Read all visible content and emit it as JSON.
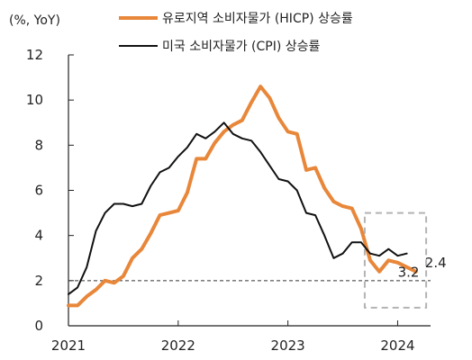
{
  "chart_data": {
    "type": "line",
    "unit_label": "(%, YoY)",
    "ylim": [
      0,
      12
    ],
    "yticks": [
      0,
      2,
      4,
      6,
      8,
      10,
      12
    ],
    "xlim": [
      2021.0,
      2024.3
    ],
    "xticks": [
      "2021",
      "2022",
      "2023",
      "2024"
    ],
    "legend_position": "top",
    "reference_line": {
      "y": 2,
      "style": "dashed"
    },
    "highlight_box": {
      "x_range": [
        2023.7,
        2024.26
      ],
      "y_range": [
        0.8,
        5.0
      ],
      "style": "dashed"
    },
    "series": [
      {
        "name": "유로지역 소비자물가 (HICP) 상승률",
        "color": "#E8873A",
        "x": [
          2021.0,
          2021.083,
          2021.167,
          2021.25,
          2021.333,
          2021.417,
          2021.5,
          2021.583,
          2021.667,
          2021.75,
          2021.833,
          2021.917,
          2022.0,
          2022.083,
          2022.167,
          2022.25,
          2022.333,
          2022.417,
          2022.5,
          2022.583,
          2022.667,
          2022.75,
          2022.833,
          2022.917,
          2023.0,
          2023.083,
          2023.167,
          2023.25,
          2023.333,
          2023.417,
          2023.5,
          2023.583,
          2023.667,
          2023.75,
          2023.833,
          2023.917,
          2024.0,
          2024.083,
          2024.167
        ],
        "values": [
          0.9,
          0.9,
          1.3,
          1.6,
          2.0,
          1.9,
          2.2,
          3.0,
          3.4,
          4.1,
          4.9,
          5.0,
          5.1,
          5.9,
          7.4,
          7.4,
          8.1,
          8.6,
          8.9,
          9.1,
          9.9,
          10.6,
          10.1,
          9.2,
          8.6,
          8.5,
          6.9,
          7.0,
          6.1,
          5.5,
          5.3,
          5.2,
          4.3,
          2.9,
          2.4,
          2.9,
          2.8,
          2.6,
          2.4
        ]
      },
      {
        "name": "미국 소비자물가 (CPI) 상승률",
        "color": "#111111",
        "x": [
          2021.0,
          2021.083,
          2021.167,
          2021.25,
          2021.333,
          2021.417,
          2021.5,
          2021.583,
          2021.667,
          2021.75,
          2021.833,
          2021.917,
          2022.0,
          2022.083,
          2022.167,
          2022.25,
          2022.333,
          2022.417,
          2022.5,
          2022.583,
          2022.667,
          2022.75,
          2022.833,
          2022.917,
          2023.0,
          2023.083,
          2023.167,
          2023.25,
          2023.333,
          2023.417,
          2023.5,
          2023.583,
          2023.667,
          2023.75,
          2023.833,
          2023.917,
          2024.0,
          2024.083,
          2024.167
        ],
        "values": [
          1.4,
          1.7,
          2.6,
          4.2,
          5.0,
          5.4,
          5.4,
          5.3,
          5.4,
          6.2,
          6.8,
          7.0,
          7.5,
          7.9,
          8.5,
          8.3,
          8.6,
          9.0,
          8.5,
          8.3,
          8.2,
          7.7,
          7.1,
          6.5,
          6.4,
          6.0,
          5.0,
          4.9,
          4.0,
          3.0,
          3.2,
          3.7,
          3.7,
          3.2,
          3.1,
          3.4,
          3.1,
          3.2,
          null
        ]
      }
    ],
    "end_labels": [
      {
        "series": 1,
        "text": "3.2"
      },
      {
        "series": 0,
        "text": "2.4"
      }
    ]
  }
}
